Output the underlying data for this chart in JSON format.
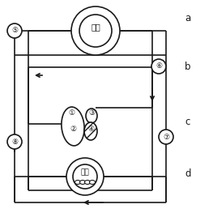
{
  "bg_color": "#ffffff",
  "line_color": "#1a1a1a",
  "labels": {
    "a": "a",
    "b": "b",
    "c": "c",
    "d": "d",
    "fei_pao": "肺泡",
    "zu_zhi": "组织",
    "circle5": "⑤",
    "circle6": "⑥",
    "circle7": "⑦",
    "circle8": "⑧",
    "num1": "①",
    "num2": "②",
    "num3": "③",
    "num4": "④"
  },
  "figsize": [
    2.63,
    2.63
  ],
  "dpi": 100
}
